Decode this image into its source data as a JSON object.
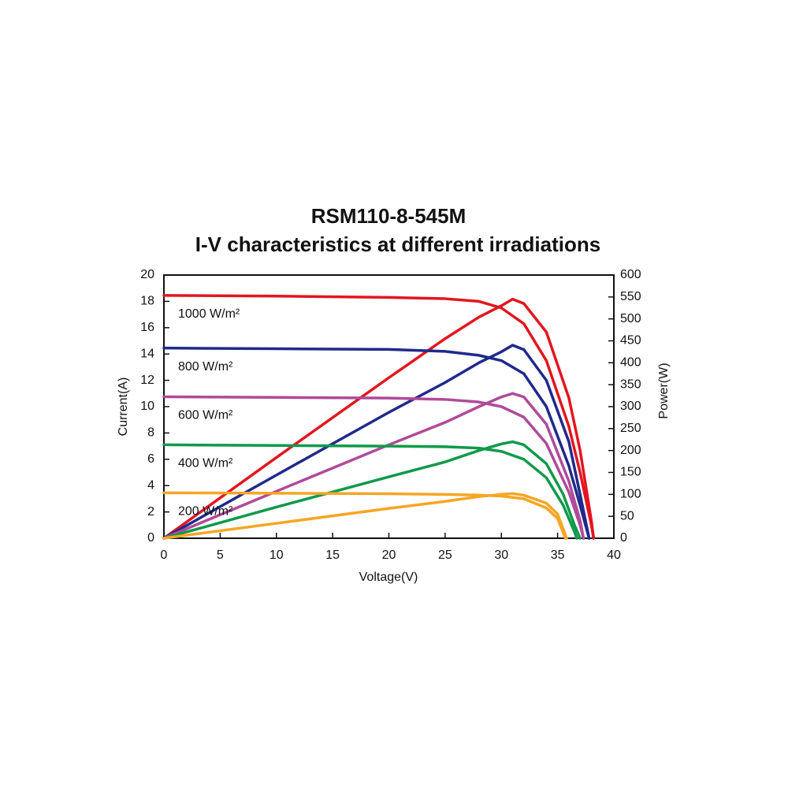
{
  "chart_data": {
    "type": "line",
    "title": "RSM110-8-545M",
    "subtitle": "I-V characteristics at different irradiations",
    "x_label": "Voltage(V)",
    "y_label": "Current(A)",
    "y2_label": "Power(W)",
    "xlim": [
      0,
      40
    ],
    "xticks": [
      0,
      5,
      10,
      15,
      20,
      25,
      30,
      35,
      40
    ],
    "ylim": [
      0,
      20
    ],
    "yticks": [
      0,
      2,
      4,
      6,
      8,
      10,
      12,
      14,
      16,
      18,
      20
    ],
    "y2lim": [
      0,
      600
    ],
    "y2ticks": [
      0,
      50,
      100,
      150,
      200,
      250,
      300,
      350,
      400,
      450,
      500,
      550,
      600
    ],
    "series": [
      {
        "name": "1000 W/m²",
        "color": "#e3161f",
        "x": [
          0,
          10,
          20,
          25,
          28,
          30,
          32,
          34,
          36,
          37,
          38,
          38.2
        ],
        "values": [
          18.45,
          18.4,
          18.3,
          18.2,
          18.0,
          17.5,
          16.3,
          13.5,
          8.5,
          5,
          1,
          0
        ]
      },
      {
        "color": "#e3161f",
        "axis": "y2",
        "x": [
          0,
          10,
          20,
          25,
          28,
          30,
          31,
          32,
          34,
          36,
          37,
          38,
          38.2
        ],
        "values": [
          0,
          184,
          366,
          455,
          504,
          530,
          545,
          535,
          470,
          320,
          200,
          40,
          0
        ]
      },
      {
        "name": "800 W/m²",
        "color": "#1f2a8c",
        "x": [
          0,
          10,
          20,
          25,
          28,
          30,
          32,
          34,
          36,
          37,
          37.8
        ],
        "values": [
          14.45,
          14.4,
          14.35,
          14.2,
          13.9,
          13.5,
          12.5,
          10,
          5.5,
          2.5,
          0
        ]
      },
      {
        "color": "#1f2a8c",
        "axis": "y2",
        "x": [
          0,
          10,
          20,
          25,
          28,
          30,
          31,
          32,
          34,
          36,
          37,
          37.8
        ],
        "values": [
          0,
          144,
          287,
          355,
          400,
          425,
          440,
          430,
          360,
          220,
          100,
          0
        ]
      },
      {
        "name": "600 W/m²",
        "color": "#b04a9a",
        "x": [
          0,
          10,
          20,
          25,
          28,
          30,
          32,
          34,
          36,
          37,
          37.3
        ],
        "values": [
          10.75,
          10.7,
          10.65,
          10.55,
          10.35,
          10.0,
          9.2,
          7.2,
          3.5,
          1,
          0
        ]
      },
      {
        "color": "#b04a9a",
        "axis": "y2",
        "x": [
          0,
          10,
          20,
          25,
          28,
          30,
          31,
          32,
          34,
          36,
          37,
          37.3
        ],
        "values": [
          0,
          107,
          213,
          264,
          300,
          322,
          330,
          322,
          260,
          130,
          40,
          0
        ]
      },
      {
        "name": "400 W/m²",
        "color": "#0f9a4a",
        "x": [
          0,
          10,
          20,
          25,
          28,
          30,
          32,
          34,
          35.5,
          36.5,
          36.7
        ],
        "values": [
          7.1,
          7.05,
          7.0,
          6.95,
          6.85,
          6.6,
          6.0,
          4.6,
          2.5,
          0.5,
          0
        ]
      },
      {
        "color": "#0f9a4a",
        "axis": "y2",
        "x": [
          0,
          10,
          20,
          25,
          28,
          30,
          31,
          32,
          34,
          35.5,
          36.5,
          37
        ],
        "values": [
          0,
          71,
          140,
          174,
          200,
          215,
          220,
          213,
          170,
          100,
          30,
          0
        ]
      },
      {
        "name": "200 W/m²",
        "color": "#f5a623",
        "x": [
          0,
          10,
          20,
          25,
          28,
          30,
          32,
          34,
          35,
          35.7
        ],
        "values": [
          3.45,
          3.42,
          3.38,
          3.33,
          3.28,
          3.2,
          3.0,
          2.3,
          1.5,
          0
        ]
      },
      {
        "color": "#f5a623",
        "axis": "y2",
        "x": [
          0,
          10,
          20,
          25,
          28,
          30,
          31,
          32,
          34,
          35,
          35.8
        ],
        "values": [
          0,
          34,
          68,
          84,
          95,
          100,
          102,
          98,
          80,
          55,
          0
        ]
      }
    ]
  }
}
